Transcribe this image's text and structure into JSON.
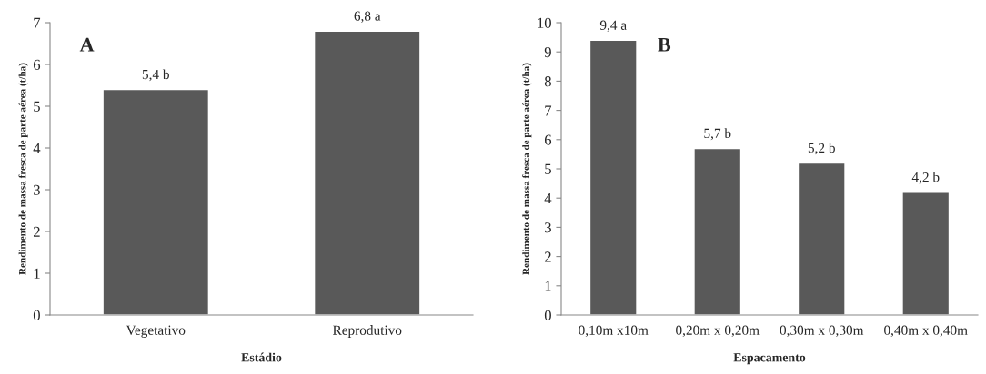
{
  "chart_data": [
    {
      "type": "bar",
      "categories": [
        "Vegetativo",
        "Reprodutivo"
      ],
      "values": [
        5.4,
        6.8
      ],
      "value_labels": [
        "5,4 b",
        "6,8 a"
      ],
      "color": "#595959",
      "xlabel": "Estádio",
      "ylabel": "Rendimento de massa fresca de parte aérea (t/ha)",
      "ylim": [
        0,
        7
      ],
      "yticks": [
        0,
        1,
        2,
        3,
        4,
        5,
        6,
        7
      ],
      "annotations": [
        "A"
      ],
      "grid": false
    },
    {
      "type": "bar",
      "categories": [
        "0,10m x10m",
        "0,20m x 0,20m",
        "0,30m x 0,30m",
        "0,40m x 0,40m"
      ],
      "values": [
        9.4,
        5.7,
        5.2,
        4.2
      ],
      "value_labels": [
        "9,4 a",
        "5,7 b",
        "5,2 b",
        "4,2 b"
      ],
      "color": "#595959",
      "xlabel": "Espacamento",
      "ylabel": "Rendimento de massa fresca de parte aérea (t/ha)",
      "ylim": [
        0,
        10
      ],
      "yticks": [
        0,
        1,
        2,
        3,
        4,
        5,
        6,
        7,
        8,
        9,
        10
      ],
      "annotations": [
        "B"
      ],
      "grid": false
    }
  ]
}
